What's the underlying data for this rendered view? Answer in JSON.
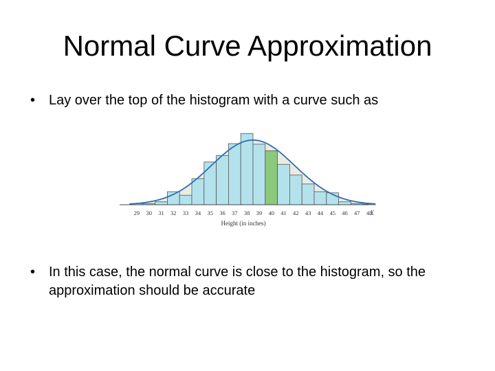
{
  "slide": {
    "title": "Normal Curve Approximation",
    "bullet_symbol": "•",
    "bullets": [
      "Lay over the top of the histogram with a curve such as",
      "In this case, the normal curve is close to the histogram, so the approximation should be accurate"
    ]
  },
  "chart_data": {
    "type": "bar",
    "title": "",
    "xlabel": "Height (in inches)",
    "x_axis_symbol": "X",
    "categories": [
      "29",
      "30",
      "31",
      "32",
      "33",
      "34",
      "35",
      "36",
      "37",
      "38",
      "39",
      "40",
      "41",
      "42",
      "43",
      "44",
      "45",
      "46",
      "47",
      "48"
    ],
    "values": [
      0.2,
      0.2,
      0.5,
      2.2,
      1.6,
      4.4,
      7.2,
      8.3,
      10.3,
      12.0,
      10.2,
      9.1,
      6.8,
      5.0,
      3.5,
      2.2,
      2.0,
      0.5,
      0.2,
      0.1
    ],
    "normal_curve": {
      "mean": 38.5,
      "sd": 3.4,
      "peak": 10.9
    },
    "highlighted_category": "40",
    "colors": {
      "bar": "#b3e2ec",
      "bar_highlight": "#8cc97a",
      "bar_outline": "#555555",
      "curve": "#2c6fb3",
      "curve_fill": "#ecebe3"
    },
    "ylim": [
      0,
      12.5
    ]
  }
}
